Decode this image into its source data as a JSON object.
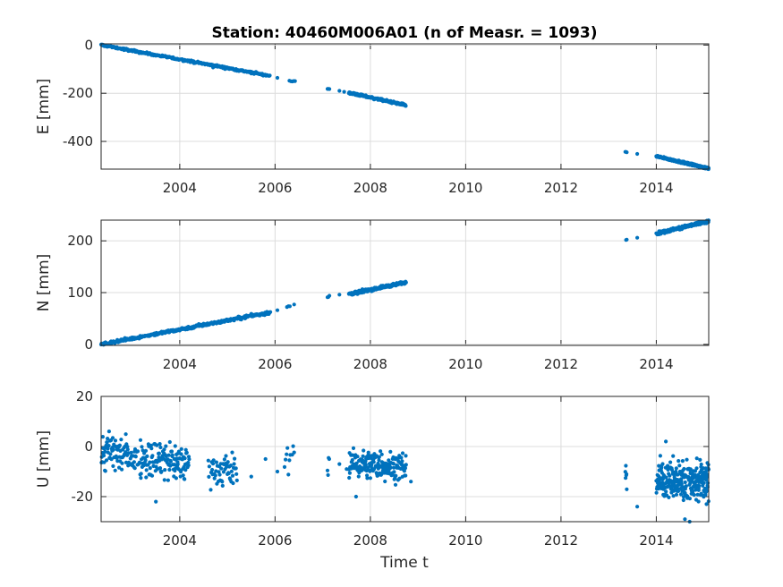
{
  "chart_data": {
    "type": "scatter",
    "title": "Station: 40460M006A01 (n of Measr. = 1093)",
    "xlabel": "Time t",
    "marker_color": "#0072BD",
    "grid": true,
    "xlim": [
      2002.35,
      2015.1
    ],
    "xticks": [
      2004,
      2006,
      2008,
      2010,
      2012,
      2014
    ],
    "xtick_labels": [
      "2004",
      "2006",
      "2008",
      "2010",
      "2012",
      "2014"
    ],
    "panels": [
      {
        "component": "E",
        "ylabel": "E [mm]",
        "ylim": [
          -515,
          5
        ],
        "yticks": [
          0,
          -200,
          -400
        ],
        "ytick_labels": [
          "0",
          "-200",
          "-400"
        ],
        "segments": [
          {
            "t_start": 2002.35,
            "t_end": 2005.9,
            "v_start": 0,
            "v_end": -128,
            "step": 0.01,
            "noise": 3
          },
          {
            "t_start": 2006.3,
            "t_end": 2006.42,
            "v_start": -148,
            "v_end": -152,
            "step": 0.03,
            "noise": 2
          },
          {
            "t_start": 2007.1,
            "t_end": 2007.15,
            "v_start": -182,
            "v_end": -185,
            "step": 0.02,
            "noise": 2
          },
          {
            "t_start": 2007.55,
            "t_end": 2008.75,
            "v_start": -198,
            "v_end": -250,
            "step": 0.006,
            "noise": 3
          },
          {
            "t_start": 2013.35,
            "t_end": 2013.38,
            "v_start": -443,
            "v_end": -447,
            "step": 0.015,
            "noise": 2
          },
          {
            "t_start": 2014.0,
            "t_end": 2015.1,
            "v_start": -462,
            "v_end": -512,
            "step": 0.0035,
            "noise": 3
          }
        ],
        "points": [
          {
            "t": 2004.7,
            "v": -93
          },
          {
            "t": 2005.5,
            "v": -118
          },
          {
            "t": 2005.8,
            "v": -126
          },
          {
            "t": 2006.05,
            "v": -136
          },
          {
            "t": 2007.35,
            "v": -190
          },
          {
            "t": 2007.45,
            "v": -194
          },
          {
            "t": 2013.6,
            "v": -452
          }
        ]
      },
      {
        "component": "N",
        "ylabel": "N [mm]",
        "ylim": [
          -2,
          240
        ],
        "yticks": [
          0,
          100,
          200
        ],
        "ytick_labels": [
          "0",
          "100",
          "200"
        ],
        "segments": [
          {
            "t_start": 2002.35,
            "t_end": 2005.9,
            "v_start": 0,
            "v_end": 62,
            "step": 0.01,
            "noise": 2
          },
          {
            "t_start": 2006.25,
            "t_end": 2006.42,
            "v_start": 72,
            "v_end": 76,
            "step": 0.03,
            "noise": 1.5
          },
          {
            "t_start": 2007.1,
            "t_end": 2007.15,
            "v_start": 90,
            "v_end": 94,
            "step": 0.02,
            "noise": 1.5
          },
          {
            "t_start": 2007.55,
            "t_end": 2008.75,
            "v_start": 97,
            "v_end": 120,
            "step": 0.006,
            "noise": 2
          },
          {
            "t_start": 2013.35,
            "t_end": 2013.38,
            "v_start": 200,
            "v_end": 204,
            "step": 0.015,
            "noise": 1.5
          },
          {
            "t_start": 2014.0,
            "t_end": 2015.1,
            "v_start": 214,
            "v_end": 238,
            "step": 0.0035,
            "noise": 2
          }
        ],
        "points": [
          {
            "t": 2005.5,
            "v": 59
          },
          {
            "t": 2006.05,
            "v": 66
          },
          {
            "t": 2007.35,
            "v": 96
          },
          {
            "t": 2013.6,
            "v": 206
          }
        ]
      },
      {
        "component": "U",
        "ylabel": "U [mm]",
        "ylim": [
          -30,
          20
        ],
        "yticks": [
          20,
          0,
          -20
        ],
        "ytick_labels": [
          "20",
          "0",
          "-20"
        ],
        "segments": [
          {
            "t_start": 2002.35,
            "t_end": 2004.2,
            "v_start": -2,
            "v_end": -7,
            "step": 0.007,
            "noise": 5.5
          },
          {
            "t_start": 2004.6,
            "t_end": 2005.2,
            "v_start": -8,
            "v_end": -10,
            "step": 0.01,
            "noise": 5
          },
          {
            "t_start": 2006.2,
            "t_end": 2006.42,
            "v_start": -6,
            "v_end": -3,
            "step": 0.02,
            "noise": 4
          },
          {
            "t_start": 2007.1,
            "t_end": 2007.15,
            "v_start": -5,
            "v_end": -7,
            "step": 0.012,
            "noise": 4
          },
          {
            "t_start": 2007.55,
            "t_end": 2008.75,
            "v_start": -7,
            "v_end": -8,
            "step": 0.006,
            "noise": 4
          },
          {
            "t_start": 2013.35,
            "t_end": 2013.38,
            "v_start": -11,
            "v_end": -14,
            "step": 0.006,
            "noise": 4
          },
          {
            "t_start": 2014.0,
            "t_end": 2015.1,
            "v_start": -13,
            "v_end": -14,
            "step": 0.0035,
            "noise": 5.5
          }
        ],
        "points": [
          {
            "t": 2003.5,
            "v": -22
          },
          {
            "t": 2005.5,
            "v": -12
          },
          {
            "t": 2005.8,
            "v": -5
          },
          {
            "t": 2006.05,
            "v": -10
          },
          {
            "t": 2007.35,
            "v": -7
          },
          {
            "t": 2007.5,
            "v": -9
          },
          {
            "t": 2007.7,
            "v": -20
          },
          {
            "t": 2008.85,
            "v": -14
          },
          {
            "t": 2013.6,
            "v": -24
          },
          {
            "t": 2014.2,
            "v": 2
          },
          {
            "t": 2014.6,
            "v": -29
          },
          {
            "t": 2014.7,
            "v": -30
          }
        ]
      }
    ]
  }
}
